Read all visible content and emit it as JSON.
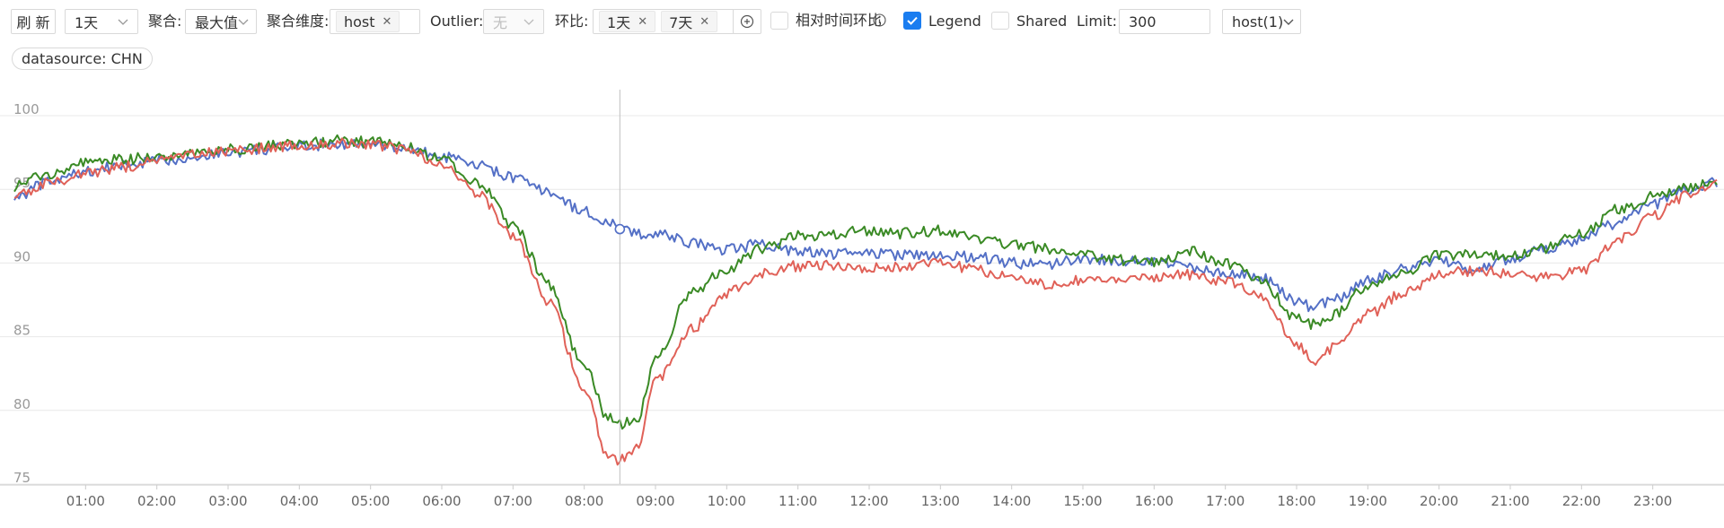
{
  "toolbar": {
    "refresh_label": "刷 新",
    "time_range": "1天",
    "agg_label": "聚合:",
    "agg_value": "最大值",
    "agg_dim_label": "聚合维度:",
    "agg_dim_tag": "host",
    "outlier_label": "Outlier:",
    "outlier_value": "无",
    "compare_label": "环比:",
    "compare_tags": [
      "1天",
      "7天"
    ],
    "relative_label": "相对时间环比",
    "legend_label": "Legend",
    "shared_label": "Shared",
    "limit_label": "Limit:",
    "limit_value": "300",
    "host_select": "host(1)"
  },
  "filters": {
    "datasource": "datasource: CHN"
  },
  "checkbox_state": {
    "relative": false,
    "legend": true,
    "shared": false
  },
  "colors": {
    "accent": "#1a7df0",
    "series_blue": "#5470c6",
    "series_green": "#3a8a25",
    "series_red": "#e06158",
    "grid": "#e8e8e8",
    "cursor": "#c0c0c0"
  },
  "icons": {
    "refresh": "none",
    "chevron": "chevron-down-icon",
    "close": "close-icon",
    "add": "plus-circle-icon",
    "info": "info-circle-icon",
    "check": "check-icon"
  },
  "chart_data": {
    "type": "line",
    "x": [
      "00:00",
      "00:30",
      "01:00",
      "01:30",
      "02:00",
      "02:30",
      "03:00",
      "03:30",
      "04:00",
      "04:30",
      "05:00",
      "05:30",
      "06:00",
      "06:30",
      "07:00",
      "07:30",
      "08:00",
      "08:20",
      "08:30",
      "08:45",
      "09:00",
      "09:30",
      "10:00",
      "10:30",
      "11:00",
      "11:30",
      "12:00",
      "12:30",
      "13:00",
      "13:30",
      "14:00",
      "14:30",
      "15:00",
      "15:30",
      "16:00",
      "16:30",
      "17:00",
      "17:30",
      "18:00",
      "18:15",
      "18:30",
      "19:00",
      "19:30",
      "20:00",
      "20:30",
      "21:00",
      "21:30",
      "22:00",
      "22:30",
      "23:00",
      "23:30",
      "23:55"
    ],
    "xticks": [
      "01:00",
      "02:00",
      "03:00",
      "04:00",
      "05:00",
      "06:00",
      "07:00",
      "08:00",
      "09:00",
      "10:00",
      "11:00",
      "12:00",
      "13:00",
      "14:00",
      "15:00",
      "16:00",
      "17:00",
      "18:00",
      "19:00",
      "20:00",
      "21:00",
      "22:00",
      "23:00"
    ],
    "yticks": [
      "75",
      "80",
      "85",
      "90",
      "95",
      "100"
    ],
    "ylim": [
      75,
      100
    ],
    "grid": true,
    "crosshair_x": "08:30",
    "series": [
      {
        "color": "#5470c6",
        "values": [
          94.5,
          95.5,
          96.2,
          96.6,
          96.9,
          97.2,
          97.5,
          97.7,
          97.9,
          98.1,
          98.0,
          97.8,
          97.2,
          96.6,
          95.8,
          94.8,
          93.5,
          92.8,
          92.3,
          92.0,
          92.0,
          91.4,
          90.9,
          91.3,
          90.8,
          90.6,
          90.7,
          90.5,
          90.6,
          90.4,
          90.0,
          89.9,
          90.3,
          90.2,
          90.1,
          89.7,
          89.4,
          89.0,
          87.4,
          87.0,
          87.5,
          88.8,
          89.6,
          90.2,
          89.5,
          90.3,
          91.0,
          91.6,
          92.7,
          94.0,
          95.0,
          95.5
        ]
      },
      {
        "color": "#3a8a25",
        "values": [
          95.2,
          96.1,
          96.8,
          97.0,
          97.2,
          97.5,
          97.7,
          97.9,
          98.1,
          98.3,
          98.2,
          98.0,
          97.0,
          95.5,
          92.6,
          88.5,
          83.0,
          79.5,
          79.0,
          79.5,
          83.5,
          88.0,
          89.5,
          91.0,
          91.8,
          92.0,
          92.2,
          92.0,
          92.2,
          91.7,
          91.2,
          91.0,
          90.5,
          90.2,
          90.0,
          90.8,
          90.0,
          88.8,
          86.2,
          85.8,
          86.5,
          88.5,
          89.4,
          90.5,
          90.7,
          90.4,
          91.0,
          92.0,
          93.6,
          94.5,
          95.2,
          95.6
        ]
      },
      {
        "color": "#e06158",
        "values": [
          94.6,
          95.4,
          96.1,
          96.5,
          96.9,
          97.3,
          97.6,
          97.8,
          98.0,
          98.1,
          98.0,
          97.7,
          96.6,
          94.8,
          91.8,
          87.4,
          81.5,
          77.0,
          76.6,
          77.5,
          82.0,
          85.5,
          88.0,
          89.3,
          89.8,
          89.9,
          89.7,
          89.8,
          90.0,
          89.5,
          89.0,
          88.6,
          88.8,
          89.0,
          89.1,
          89.2,
          88.8,
          87.8,
          84.4,
          83.2,
          84.2,
          86.5,
          88.0,
          89.2,
          89.5,
          89.3,
          89.0,
          89.5,
          91.5,
          93.2,
          94.6,
          95.3
        ]
      }
    ]
  }
}
